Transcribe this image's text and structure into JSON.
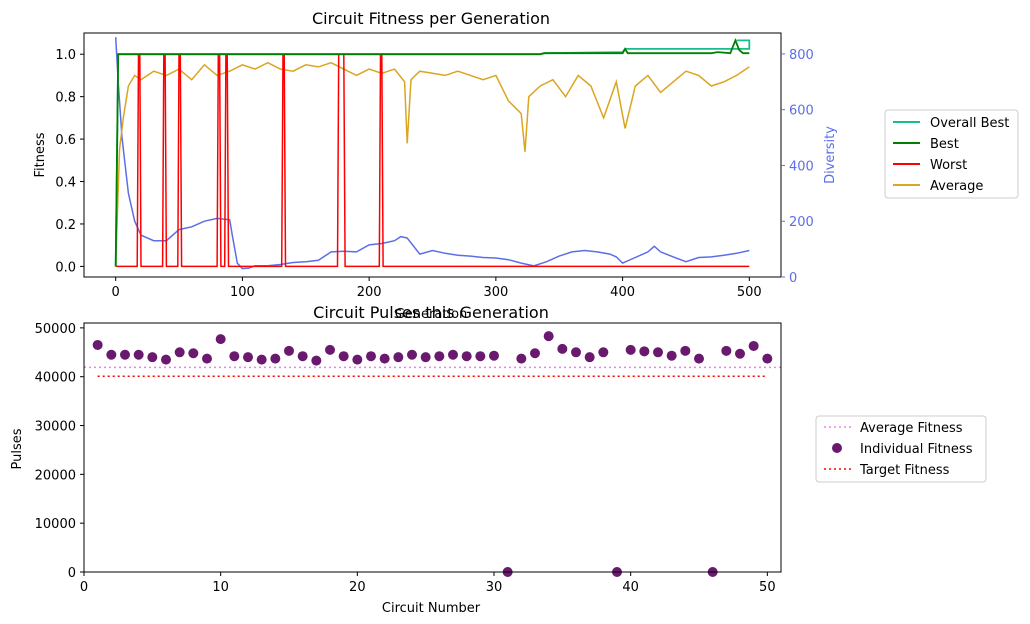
{
  "chart_data": [
    {
      "type": "line",
      "title": "Circuit Fitness per Generation",
      "xlabel": "Generation",
      "ylabel": "Fitness",
      "y2label": "Diversity",
      "xlim": [
        -25,
        525
      ],
      "ylim": [
        -0.05,
        1.1
      ],
      "y2lim": [
        0,
        875
      ],
      "xticks": [
        "0",
        "100",
        "200",
        "300",
        "400",
        "500"
      ],
      "yticks": [
        "0.0",
        "0.2",
        "0.4",
        "0.6",
        "0.8",
        "1.0"
      ],
      "y2ticks": [
        "0",
        "200",
        "400",
        "600",
        "800"
      ],
      "legend_position": "right",
      "colors": {
        "overall_best": "#1abc8c",
        "best": "#008000",
        "worst": "#ff0000",
        "average": "#daa520",
        "diversity": "#5b6ee8"
      },
      "series": [
        {
          "name": "Overall Best",
          "axis": "left",
          "points": [
            [
              0,
              0
            ],
            [
              2,
              1.0
            ],
            [
              335,
              1.0
            ],
            [
              338,
              1.005
            ],
            [
              400,
              1.01
            ],
            [
              402,
              1.025
            ],
            [
              500,
              1.025
            ],
            [
              500,
              1.065
            ],
            [
              490,
              1.065
            ]
          ]
        },
        {
          "name": "Best",
          "axis": "left",
          "points": [
            [
              0,
              0
            ],
            [
              2,
              1.0
            ],
            [
              335,
              1.0
            ],
            [
              338,
              1.005
            ],
            [
              400,
              1.005
            ],
            [
              402,
              1.025
            ],
            [
              404,
              1.005
            ],
            [
              470,
              1.005
            ],
            [
              475,
              1.01
            ],
            [
              485,
              1.005
            ],
            [
              489,
              1.065
            ],
            [
              492,
              1.02
            ],
            [
              495,
              1.005
            ],
            [
              500,
              1.005
            ]
          ]
        },
        {
          "name": "Worst",
          "axis": "left",
          "spikes": [
            18,
            19,
            38,
            39,
            50,
            51,
            81,
            82,
            87,
            88,
            132,
            133,
            176,
            177,
            178,
            179,
            180,
            209,
            210
          ],
          "baseline": 0,
          "peak": 1.0,
          "x_range": [
            0,
            500
          ]
        },
        {
          "name": "Average",
          "axis": "left",
          "points": [
            [
              0,
              0
            ],
            [
              3,
              0.55
            ],
            [
              6,
              0.7
            ],
            [
              10,
              0.85
            ],
            [
              15,
              0.9
            ],
            [
              20,
              0.88
            ],
            [
              30,
              0.92
            ],
            [
              40,
              0.9
            ],
            [
              50,
              0.93
            ],
            [
              60,
              0.88
            ],
            [
              70,
              0.95
            ],
            [
              80,
              0.9
            ],
            [
              90,
              0.92
            ],
            [
              100,
              0.95
            ],
            [
              110,
              0.93
            ],
            [
              120,
              0.96
            ],
            [
              130,
              0.93
            ],
            [
              140,
              0.92
            ],
            [
              150,
              0.95
            ],
            [
              160,
              0.94
            ],
            [
              170,
              0.96
            ],
            [
              180,
              0.93
            ],
            [
              190,
              0.9
            ],
            [
              200,
              0.93
            ],
            [
              210,
              0.91
            ],
            [
              220,
              0.93
            ],
            [
              228,
              0.87
            ],
            [
              230,
              0.58
            ],
            [
              233,
              0.88
            ],
            [
              240,
              0.92
            ],
            [
              250,
              0.91
            ],
            [
              260,
              0.9
            ],
            [
              270,
              0.92
            ],
            [
              280,
              0.9
            ],
            [
              290,
              0.88
            ],
            [
              300,
              0.9
            ],
            [
              310,
              0.78
            ],
            [
              320,
              0.72
            ],
            [
              323,
              0.54
            ],
            [
              326,
              0.8
            ],
            [
              335,
              0.85
            ],
            [
              345,
              0.88
            ],
            [
              355,
              0.8
            ],
            [
              365,
              0.9
            ],
            [
              375,
              0.85
            ],
            [
              385,
              0.7
            ],
            [
              395,
              0.87
            ],
            [
              402,
              0.65
            ],
            [
              410,
              0.85
            ],
            [
              420,
              0.9
            ],
            [
              430,
              0.82
            ],
            [
              440,
              0.87
            ],
            [
              450,
              0.92
            ],
            [
              460,
              0.9
            ],
            [
              470,
              0.85
            ],
            [
              480,
              0.87
            ],
            [
              490,
              0.9
            ],
            [
              500,
              0.94
            ]
          ]
        },
        {
          "name": "Diversity",
          "axis": "right",
          "points": [
            [
              0,
              860
            ],
            [
              2,
              700
            ],
            [
              5,
              500
            ],
            [
              10,
              300
            ],
            [
              15,
              200
            ],
            [
              20,
              150
            ],
            [
              30,
              130
            ],
            [
              40,
              130
            ],
            [
              50,
              170
            ],
            [
              60,
              180
            ],
            [
              70,
              200
            ],
            [
              80,
              210
            ],
            [
              90,
              205
            ],
            [
              92,
              150
            ],
            [
              96,
              50
            ],
            [
              100,
              30
            ],
            [
              105,
              32
            ],
            [
              110,
              40
            ],
            [
              120,
              40
            ],
            [
              130,
              45
            ],
            [
              140,
              52
            ],
            [
              150,
              55
            ],
            [
              160,
              60
            ],
            [
              170,
              90
            ],
            [
              180,
              92
            ],
            [
              190,
              90
            ],
            [
              200,
              115
            ],
            [
              210,
              120
            ],
            [
              220,
              130
            ],
            [
              225,
              145
            ],
            [
              230,
              140
            ],
            [
              240,
              82
            ],
            [
              250,
              95
            ],
            [
              260,
              85
            ],
            [
              270,
              78
            ],
            [
              280,
              75
            ],
            [
              290,
              70
            ],
            [
              300,
              68
            ],
            [
              310,
              62
            ],
            [
              320,
              50
            ],
            [
              330,
              40
            ],
            [
              340,
              55
            ],
            [
              350,
              75
            ],
            [
              360,
              90
            ],
            [
              370,
              95
            ],
            [
              380,
              90
            ],
            [
              390,
              82
            ],
            [
              395,
              72
            ],
            [
              400,
              50
            ],
            [
              410,
              70
            ],
            [
              420,
              90
            ],
            [
              425,
              110
            ],
            [
              430,
              90
            ],
            [
              440,
              72
            ],
            [
              450,
              55
            ],
            [
              460,
              70
            ],
            [
              470,
              72
            ],
            [
              480,
              78
            ],
            [
              490,
              85
            ],
            [
              500,
              95
            ]
          ]
        }
      ]
    },
    {
      "type": "scatter",
      "title": "Circuit Pulses this Generation",
      "xlabel": "Circuit Number",
      "ylabel": "Pulses",
      "xlim": [
        0,
        51
      ],
      "ylim": [
        0,
        51000
      ],
      "xticks": [
        "0",
        "10",
        "20",
        "30",
        "40",
        "50"
      ],
      "yticks": [
        "0",
        "10000",
        "20000",
        "30000",
        "40000",
        "50000"
      ],
      "legend_position": "right",
      "colors": {
        "average": "#ee82ee",
        "individual": "#6a1a6e",
        "target": "#ff0000"
      },
      "average_fitness": 41900,
      "target_fitness": 40100,
      "target_x_range": [
        1,
        50
      ],
      "series_names": {
        "average": "Average Fitness",
        "individual": "Individual Fitness",
        "target": "Target Fitness"
      },
      "x": [
        1,
        2,
        3,
        4,
        5,
        6,
        7,
        8,
        9,
        10,
        11,
        12,
        13,
        14,
        15,
        16,
        17,
        18,
        19,
        20,
        21,
        22,
        23,
        24,
        25,
        26,
        27,
        28,
        29,
        30,
        31,
        32,
        33,
        34,
        35,
        36,
        37,
        38,
        39,
        40,
        41,
        42,
        43,
        44,
        45,
        46,
        47,
        48,
        49,
        50
      ],
      "y": [
        46500,
        44500,
        44500,
        44500,
        44000,
        43500,
        45000,
        44800,
        43700,
        47700,
        44200,
        44000,
        43500,
        43700,
        45300,
        44200,
        43300,
        45500,
        44200,
        43500,
        44200,
        43700,
        44000,
        44500,
        44000,
        44200,
        44500,
        44200,
        44200,
        44300,
        0,
        43700,
        44800,
        48300,
        45700,
        45000,
        44000,
        45000,
        0,
        45500,
        45200,
        45000,
        44300,
        45300,
        43700,
        0,
        45300,
        44700,
        46300,
        43700
      ]
    }
  ]
}
